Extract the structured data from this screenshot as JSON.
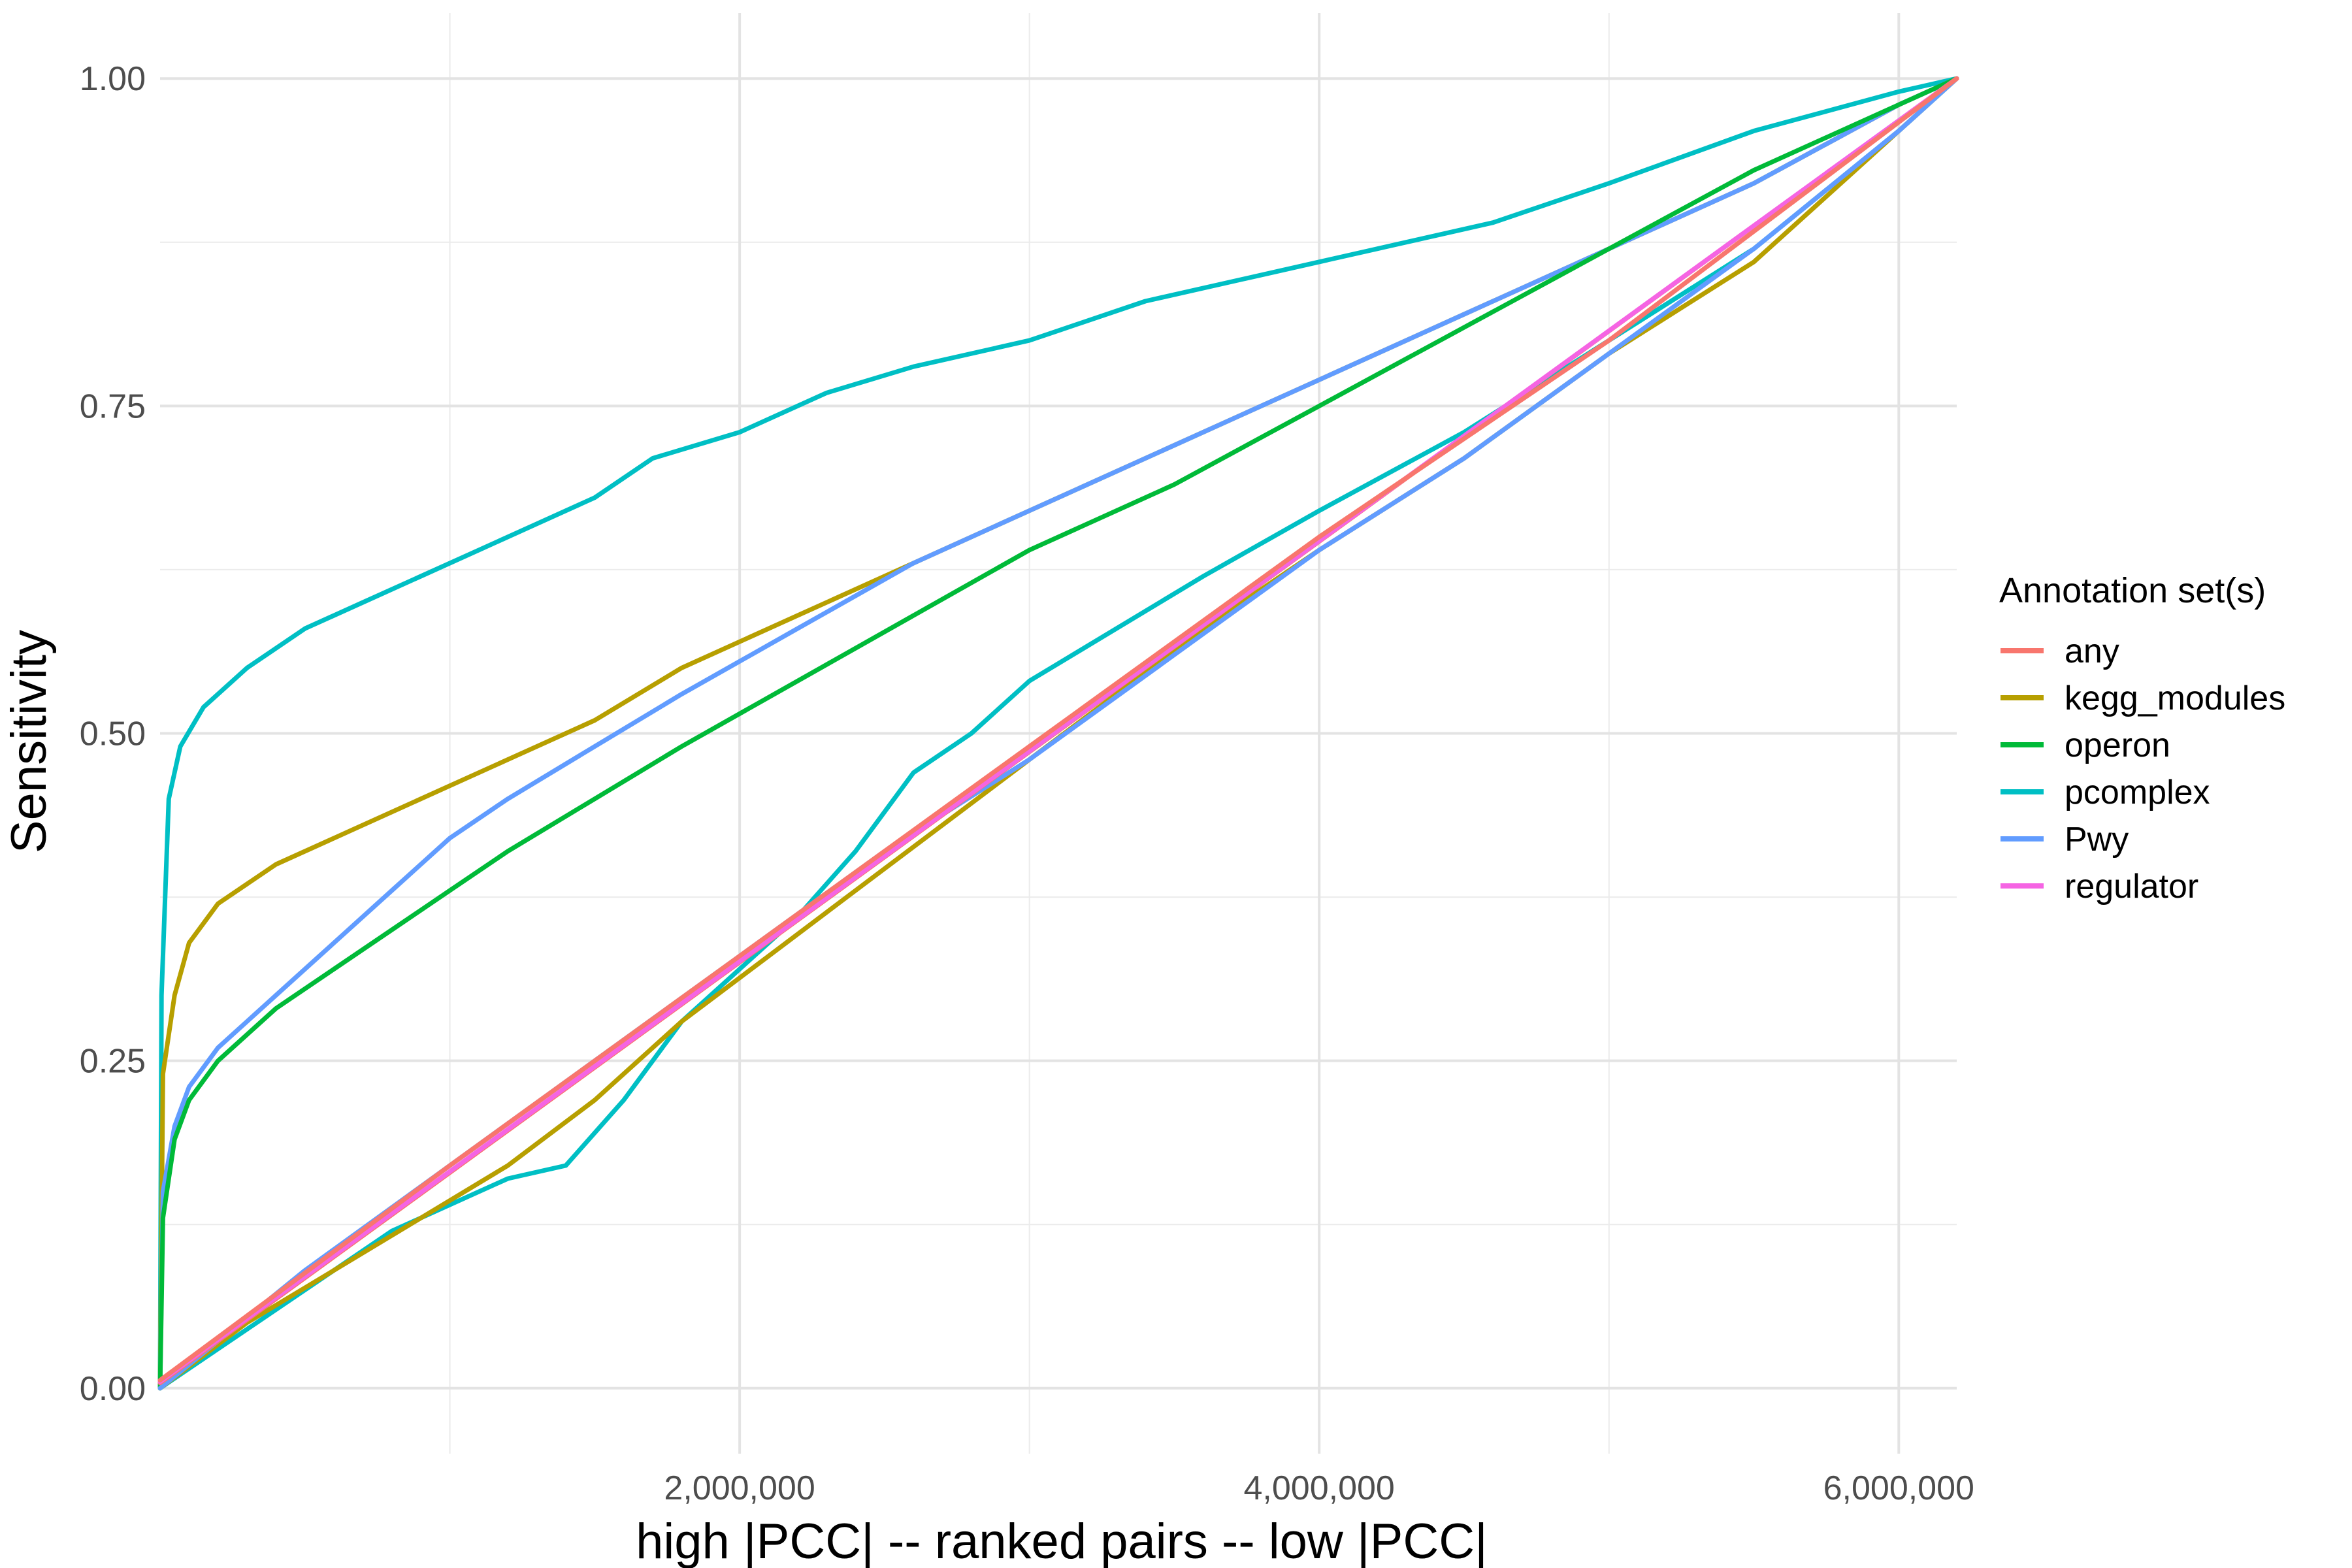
{
  "chart_data": {
    "type": "line",
    "title": "",
    "xlabel": "high |PCC| -- ranked pairs -- low |PCC|",
    "ylabel": "Sensitivity",
    "xlim": [
      0,
      6200000
    ],
    "ylim": [
      -0.05,
      1.05
    ],
    "x_ticks": [
      2000000,
      4000000,
      6000000
    ],
    "x_tick_labels": [
      "2,000,000",
      "4,000,000",
      "6,000,000"
    ],
    "x_minor_ticks": [
      1000000,
      3000000,
      5000000
    ],
    "y_ticks": [
      0,
      0.25,
      0.5,
      0.75,
      1
    ],
    "y_tick_labels": [
      "0.00",
      "0.25",
      "0.50",
      "0.75",
      "1.00"
    ],
    "y_minor_ticks": [
      0.125,
      0.375,
      0.625,
      0.875
    ],
    "grid": true,
    "legend": {
      "title": "Annotation set(s)",
      "position": "right",
      "entries": [
        "any",
        "kegg_modules",
        "operon",
        "pcomplex",
        "Pwy",
        "regulator"
      ]
    },
    "colors": {
      "any": "#F8766D",
      "kegg_modules": "#B79F00",
      "operon": "#00BA38",
      "pcomplex": "#00BFC4",
      "Pwy": "#619CFF",
      "regulator": "#F564E3"
    },
    "series": [
      {
        "name": "pcomplex",
        "x": [
          0,
          5000,
          30000,
          70000,
          150000,
          300000,
          500000,
          700000,
          900000,
          1100000,
          1300000,
          1500000,
          1700000,
          2000000,
          2300000,
          2600000,
          3000000,
          3400000,
          3800000,
          4200000,
          4600000,
          5000000,
          5500000,
          6000000,
          6200000
        ],
        "y": [
          0,
          0.3,
          0.45,
          0.49,
          0.52,
          0.55,
          0.58,
          0.6,
          0.62,
          0.64,
          0.66,
          0.68,
          0.71,
          0.73,
          0.76,
          0.78,
          0.8,
          0.83,
          0.85,
          0.87,
          0.89,
          0.92,
          0.96,
          0.99,
          1.0
        ]
      },
      {
        "name": "kegg_modules",
        "x": [
          0,
          10000,
          50000,
          100000,
          200000,
          400000,
          600000,
          800000,
          1000000,
          1200000,
          1500000,
          1800000,
          2200000,
          2600000,
          3000000,
          3500000,
          4000000,
          4500000,
          5000000,
          5500000,
          6000000,
          6200000
        ],
        "y": [
          0,
          0.24,
          0.3,
          0.34,
          0.37,
          0.4,
          0.42,
          0.44,
          0.46,
          0.48,
          0.51,
          0.55,
          0.59,
          0.63,
          0.67,
          0.72,
          0.77,
          0.82,
          0.87,
          0.92,
          0.98,
          1.0
        ]
      },
      {
        "name": "Pwy",
        "x": [
          0,
          10000,
          50000,
          100000,
          200000,
          400000,
          600000,
          800000,
          1000000,
          1200000,
          1500000,
          1800000,
          2200000,
          2600000,
          3000000,
          3500000,
          4000000,
          4500000,
          5000000,
          5500000,
          6000000,
          6200000
        ],
        "y": [
          0,
          0.15,
          0.2,
          0.23,
          0.26,
          0.3,
          0.34,
          0.38,
          0.42,
          0.45,
          0.49,
          0.53,
          0.58,
          0.63,
          0.67,
          0.72,
          0.77,
          0.82,
          0.87,
          0.92,
          0.98,
          1.0
        ]
      },
      {
        "name": "operon",
        "x": [
          0,
          10000,
          50000,
          100000,
          200000,
          400000,
          600000,
          800000,
          1000000,
          1200000,
          1500000,
          1800000,
          2200000,
          2600000,
          3000000,
          3500000,
          4000000,
          4500000,
          5000000,
          5500000,
          6000000,
          6200000
        ],
        "y": [
          0,
          0.13,
          0.19,
          0.22,
          0.25,
          0.29,
          0.32,
          0.35,
          0.38,
          0.41,
          0.45,
          0.49,
          0.54,
          0.59,
          0.64,
          0.69,
          0.75,
          0.81,
          0.87,
          0.93,
          0.98,
          1.0
        ]
      },
      {
        "name": "pcomplex",
        "x": [
          0,
          200000,
          400000,
          600000,
          800000,
          1000000,
          1200000,
          1400000,
          1600000,
          1800000,
          2000000,
          2200000,
          2400000,
          2600000,
          2800000,
          3000000,
          3300000,
          3600000,
          4000000,
          4500000,
          5000000,
          5500000,
          6000000,
          6200000
        ],
        "y": [
          0,
          0.03,
          0.06,
          0.09,
          0.12,
          0.14,
          0.16,
          0.17,
          0.22,
          0.28,
          0.32,
          0.36,
          0.41,
          0.47,
          0.5,
          0.54,
          0.58,
          0.62,
          0.67,
          0.73,
          0.8,
          0.87,
          0.96,
          1.0
        ]
      },
      {
        "name": "kegg_modules",
        "x": [
          0,
          300000,
          600000,
          900000,
          1200000,
          1500000,
          1800000,
          2100000,
          2400000,
          2700000,
          3000000,
          3300000,
          3600000,
          4000000,
          4500000,
          5000000,
          5500000,
          6000000,
          6200000
        ],
        "y": [
          0,
          0.05,
          0.09,
          0.13,
          0.17,
          0.22,
          0.28,
          0.33,
          0.38,
          0.43,
          0.48,
          0.53,
          0.58,
          0.64,
          0.71,
          0.79,
          0.86,
          0.96,
          1.0
        ]
      },
      {
        "name": "Pwy",
        "x": [
          0,
          500000,
          1000000,
          1500000,
          2000000,
          2500000,
          3000000,
          3500000,
          4000000,
          4500000,
          5000000,
          5500000,
          6000000,
          6200000
        ],
        "y": [
          0,
          0.09,
          0.17,
          0.25,
          0.33,
          0.41,
          0.48,
          0.56,
          0.64,
          0.71,
          0.79,
          0.87,
          0.96,
          1.0
        ]
      },
      {
        "name": "any",
        "x": [
          0,
          6200000
        ],
        "y": [
          0.004,
          1.0
        ]
      },
      {
        "name": "regulator",
        "x": [
          0,
          6200000
        ],
        "y": [
          0.005,
          1.0
        ]
      },
      {
        "name": "any",
        "x": [
          0,
          1000000,
          2000000,
          3000000,
          4000000,
          5000000,
          6200000
        ],
        "y": [
          0.006,
          0.17,
          0.33,
          0.49,
          0.65,
          0.8,
          1.0
        ]
      }
    ]
  }
}
